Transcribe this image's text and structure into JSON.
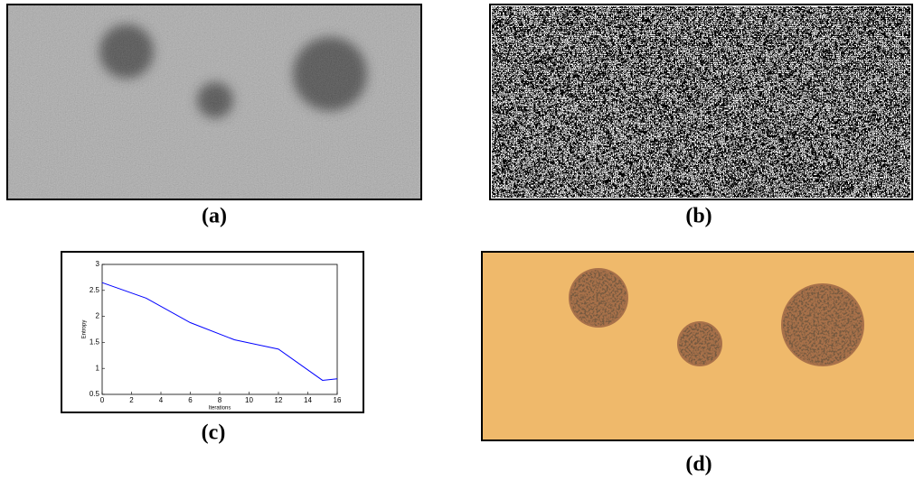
{
  "captions": [
    "(a)",
    "(b)",
    "(c)",
    "(d)"
  ],
  "chart_data": {
    "type": "line",
    "xlabel": "Iterations",
    "ylabel": "Entropy",
    "x": [
      0,
      3,
      6,
      9,
      12,
      15,
      16
    ],
    "series": [
      {
        "color": "#0000ff",
        "values": [
          2.65,
          2.35,
          1.88,
          1.55,
          1.37,
          0.77,
          0.8
        ]
      }
    ],
    "xlim": [
      0,
      16
    ],
    "xticks": [
      0,
      2,
      4,
      6,
      8,
      10,
      12,
      14,
      16
    ],
    "ylim": [
      0.5,
      3
    ],
    "yticks": [
      0.5,
      1,
      1.5,
      2,
      2.5,
      3
    ]
  }
}
